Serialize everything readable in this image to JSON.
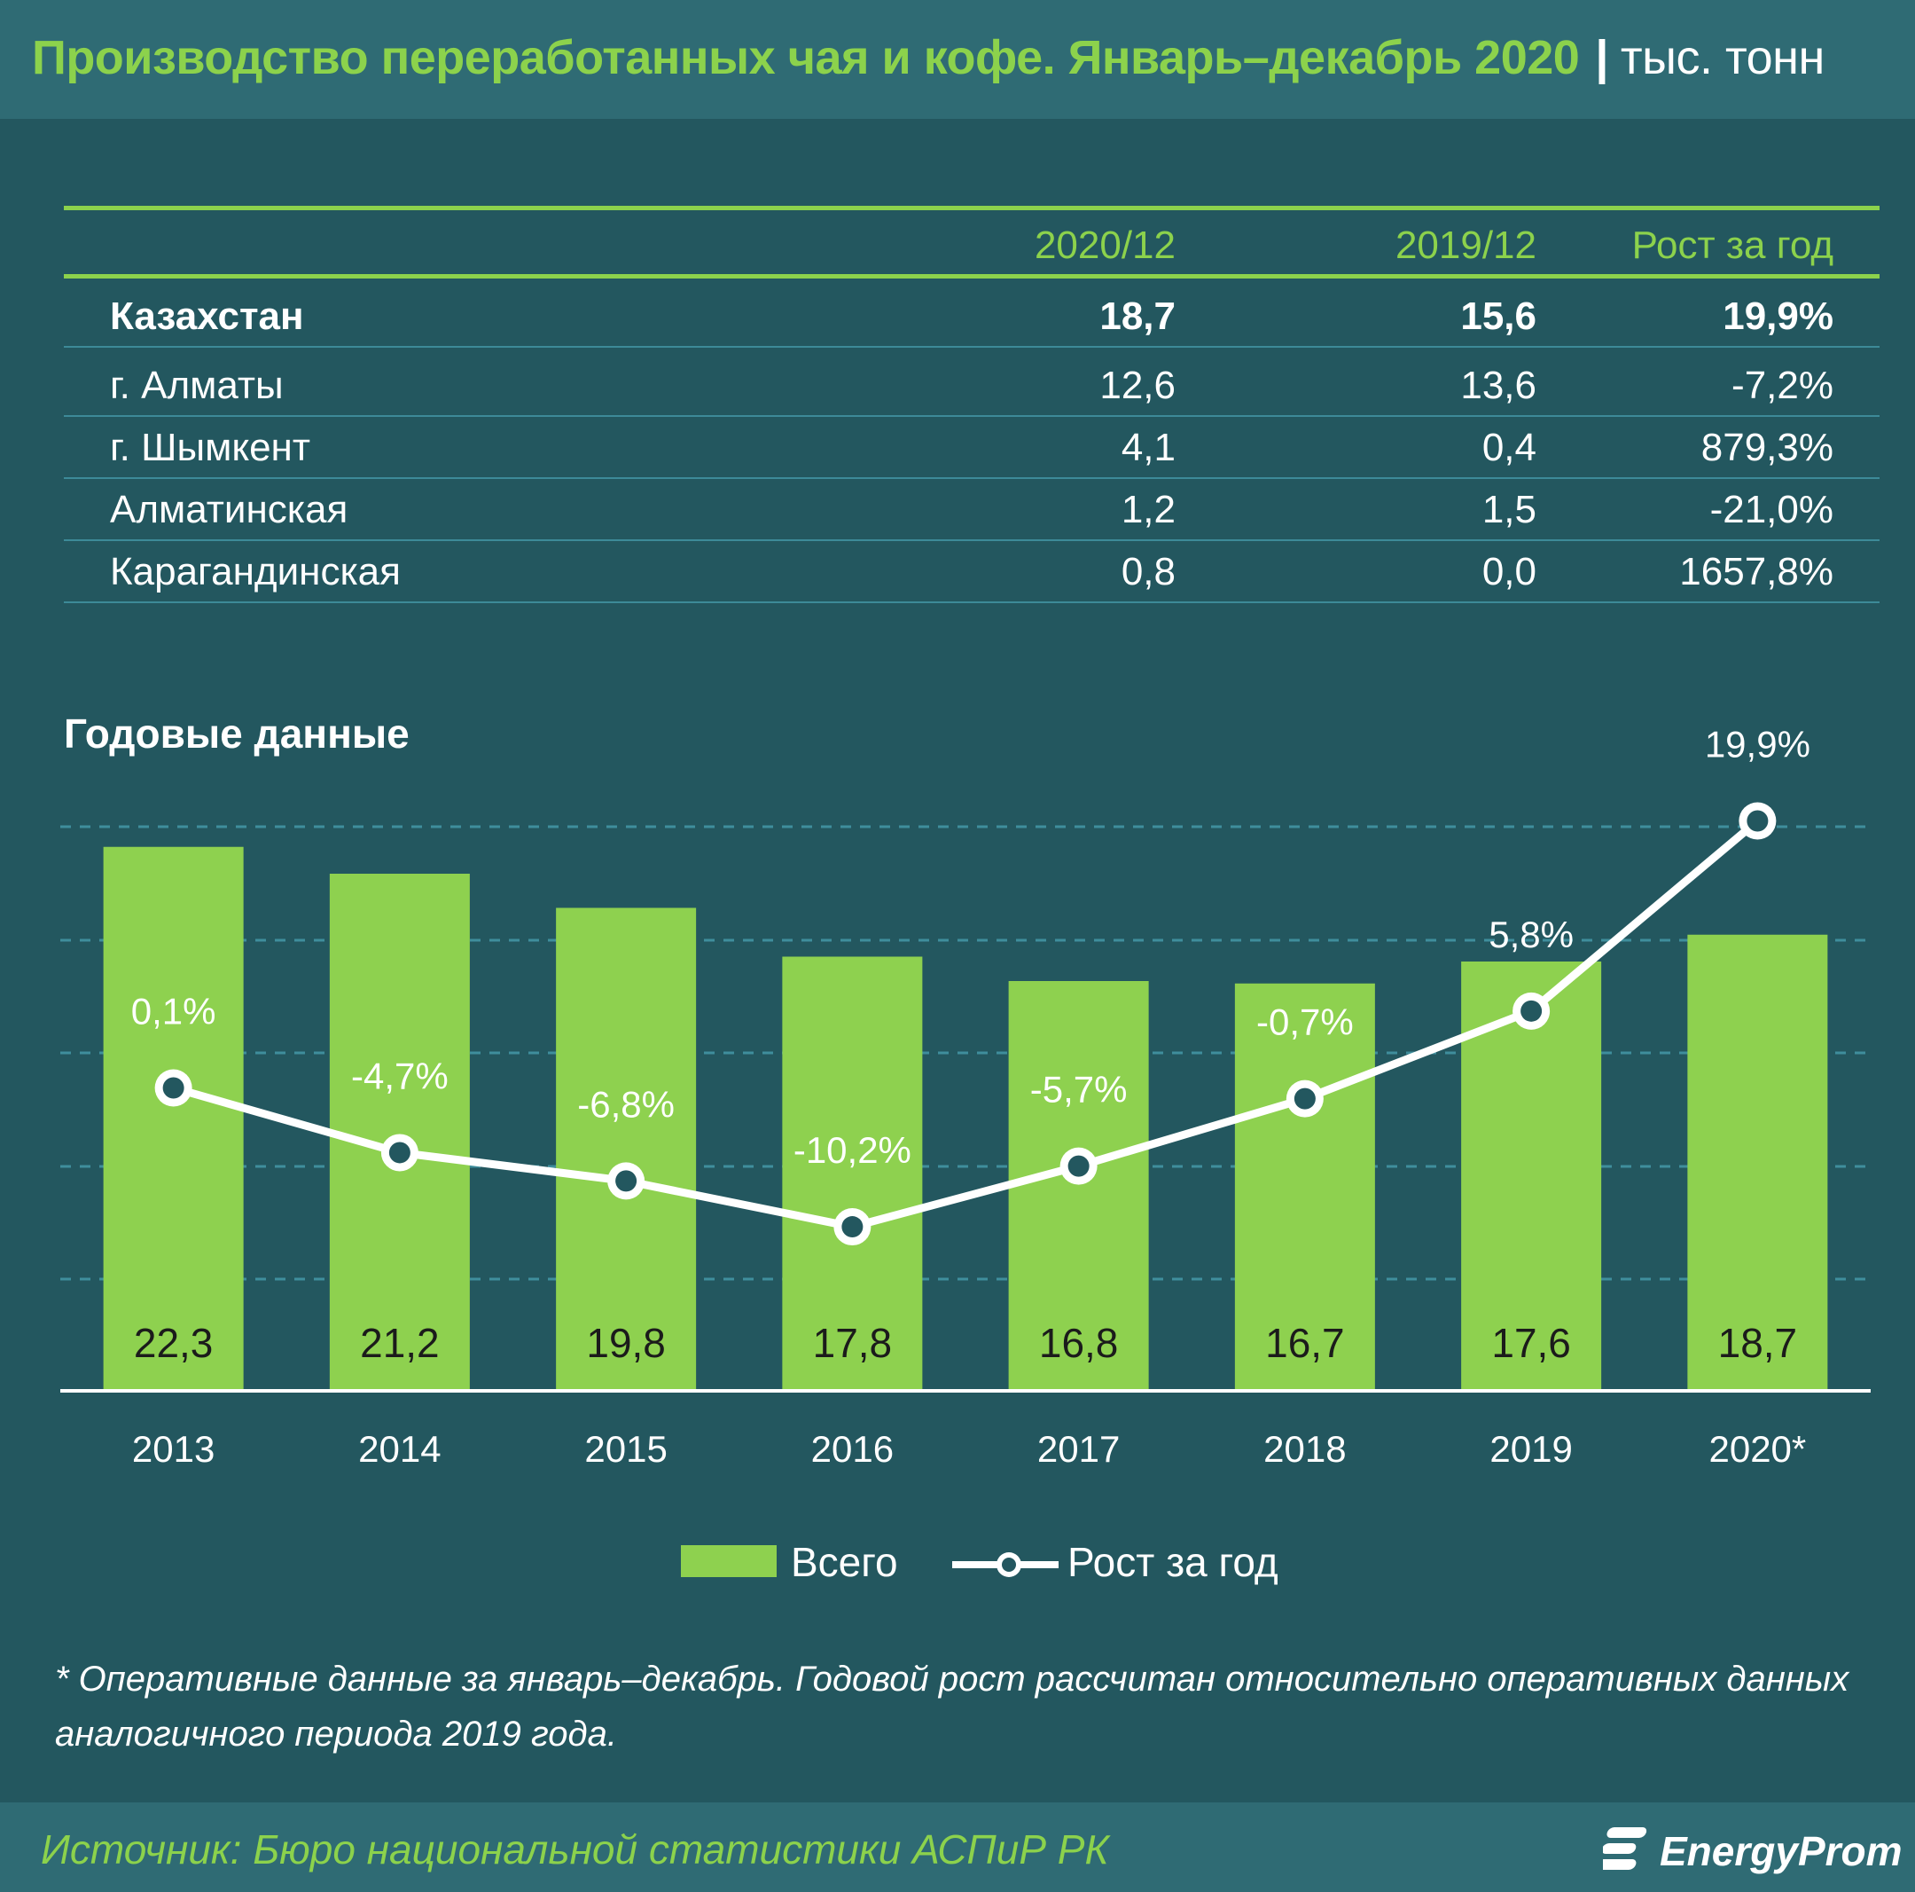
{
  "header": {
    "title": "Производство переработанных чая и кофе. Январь–декабрь 2020",
    "separator": "|",
    "unit": "тыс. тонн"
  },
  "table": {
    "columns": [
      "2020/12",
      "2019/12",
      "Рост за год"
    ],
    "rows": [
      {
        "region": "Казахстан",
        "v2020": "18,7",
        "v2019": "15,6",
        "growth": "19,9%"
      },
      {
        "region": "г. Алматы",
        "v2020": "12,6",
        "v2019": "13,6",
        "growth": "-7,2%"
      },
      {
        "region": "г. Шымкент",
        "v2020": "4,1",
        "v2019": "0,4",
        "growth": "879,3%"
      },
      {
        "region": "Алматинская",
        "v2020": "1,2",
        "v2019": "1,5",
        "growth": "-21,0%"
      },
      {
        "region": "Карагандинская",
        "v2020": "0,8",
        "v2019": "0,0",
        "growth": "1657,8%"
      }
    ]
  },
  "section_title": "Годовые данные",
  "chart_data": {
    "type": "bar",
    "categories": [
      "2013",
      "2014",
      "2015",
      "2016",
      "2017",
      "2018",
      "2019",
      "2020*"
    ],
    "series": [
      {
        "name": "Всего",
        "type": "bar",
        "values": [
          22.3,
          21.2,
          19.8,
          17.8,
          16.8,
          16.7,
          17.6,
          18.7
        ],
        "labels": [
          "22,3",
          "21,2",
          "19,8",
          "17,8",
          "16,8",
          "16,7",
          "17,6",
          "18,7"
        ]
      },
      {
        "name": "Рост за год",
        "type": "line",
        "values": [
          0.1,
          -4.7,
          -6.8,
          -10.2,
          -5.7,
          -0.7,
          5.8,
          19.9
        ],
        "labels": [
          "0,1%",
          "-4,7%",
          "-6,8%",
          "-10,2%",
          "-5,7%",
          "-0,7%",
          "5,8%",
          "19,9%"
        ]
      }
    ],
    "bar_ylim": [
      0,
      25
    ],
    "line_ylim": [
      -30,
      25
    ],
    "grid": true,
    "legend": "bottom",
    "colors": {
      "bar": "#8ed14f",
      "line": "#ffffff",
      "grid": "#3f8e9c",
      "axis": "#ffffff"
    }
  },
  "legend": {
    "bar_label": "Всего",
    "line_label": "Рост за год"
  },
  "footnote": "* Оперативные данные за январь–декабрь. Годовой рост рассчитан относительно оперативных данных аналогичного периода 2019 года.",
  "footer": {
    "source": "Источник: Бюро национальной  статистики АСПиР РК",
    "logo_text": "EnergyProm"
  }
}
